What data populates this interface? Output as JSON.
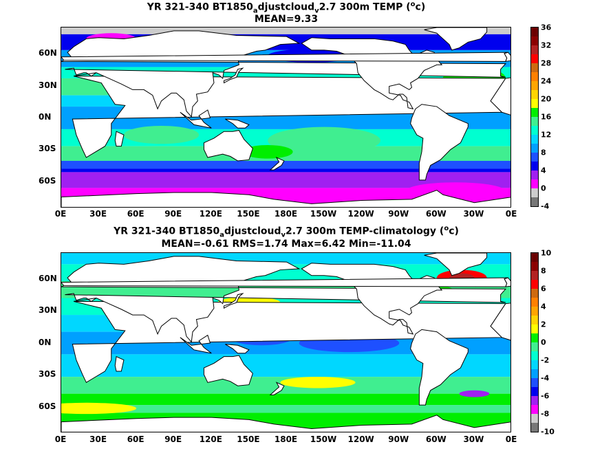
{
  "chart_data": [
    {
      "type": "heatmap",
      "title_parts": [
        "YR 321-340 BT1850",
        "a",
        "djustcloud",
        "v",
        "2.7 300m TEMP (",
        "o",
        "c)"
      ],
      "subtitle": "MEAN=9.33",
      "y_ticks": [
        "60N",
        "30N",
        "0N",
        "30S",
        "60S"
      ],
      "x_ticks": [
        "0E",
        "30E",
        "60E",
        "90E",
        "120E",
        "150E",
        "180E",
        "150W",
        "120W",
        "90W",
        "60W",
        "30W",
        "0E"
      ],
      "colorbar_ticks": [
        "36",
        "32",
        "28",
        "24",
        "20",
        "16",
        "12",
        "8",
        "4",
        "0",
        "-4"
      ],
      "colorbar_range": [
        -4,
        36
      ],
      "colorbar_colors": [
        "#777777",
        "#cccccc",
        "#ff00ff",
        "#a020f0",
        "#0000ee",
        "#1e50ff",
        "#00a0ff",
        "#00d7ff",
        "#00ffd0",
        "#40ee90",
        "#00ee00",
        "#ffff00",
        "#ffd400",
        "#ffa500",
        "#ff8000",
        "#cd6a10",
        "#ff0000",
        "#b22222",
        "#8b0000",
        "#6b0000"
      ],
      "mean": 9.33
    },
    {
      "type": "heatmap",
      "title_parts": [
        "YR 321-340 BT1850",
        "a",
        "djustcloud",
        "v",
        "2.7 300m TEMP-climatology (",
        "o",
        "c)"
      ],
      "subtitle": "MEAN=-0.61   RMS=1.74   Max=6.42   Min=-11.04",
      "y_ticks": [
        "60N",
        "30N",
        "0N",
        "30S",
        "60S"
      ],
      "x_ticks": [
        "0E",
        "30E",
        "60E",
        "90E",
        "120E",
        "150E",
        "180E",
        "150W",
        "120W",
        "90W",
        "60W",
        "30W",
        "0E"
      ],
      "colorbar_ticks": [
        "10",
        "8",
        "6",
        "4",
        "2",
        "0",
        "-2",
        "-4",
        "-6",
        "-8",
        "-10"
      ],
      "colorbar_range": [
        -10,
        10
      ],
      "colorbar_colors": [
        "#777777",
        "#cccccc",
        "#ff00ff",
        "#a020f0",
        "#0000ee",
        "#1e50ff",
        "#00a0ff",
        "#00d7ff",
        "#00ffd0",
        "#40ee90",
        "#00ee00",
        "#ffff00",
        "#ffd400",
        "#ffa500",
        "#ff8000",
        "#cd6a10",
        "#ff0000",
        "#b22222",
        "#8b0000",
        "#6b0000"
      ],
      "mean": -0.61,
      "rms": 1.74,
      "max": 6.42,
      "min": -11.04
    }
  ]
}
